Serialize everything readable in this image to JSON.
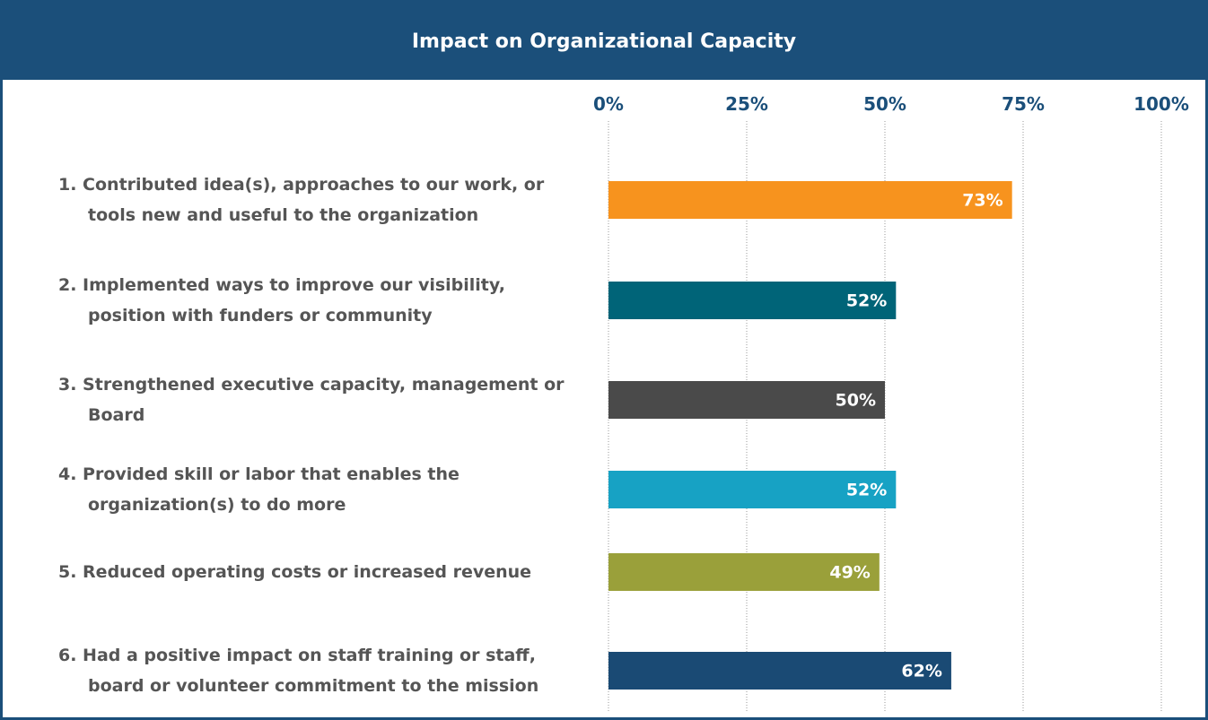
{
  "chart_data": {
    "type": "bar",
    "orientation": "horizontal",
    "title": "Impact on Organizational Capacity",
    "categories": [
      "1. Contributed idea(s), approaches to our work, or tools new and useful to the organization",
      "2. Implemented ways to improve our visibility, position with funders or community",
      "3. Strengthened executive capacity, management or Board",
      "4. Provided skill or labor that enables the organization(s) to do more",
      "5. Reduced operating costs or increased revenue",
      "6. Had a positive impact on staff training or staff, board or volunteer commitment to the mission"
    ],
    "values": [
      73,
      52,
      50,
      52,
      49,
      62
    ],
    "value_labels": [
      "73%",
      "52%",
      "50%",
      "52%",
      "49%",
      "62%"
    ],
    "colors": [
      "#f7931e",
      "#006478",
      "#4a4a4a",
      "#17a2c4",
      "#9aa03a",
      "#1a4a74"
    ],
    "xlim": [
      0,
      100
    ],
    "xticks": [
      {
        "value": 0,
        "label": "0%"
      },
      {
        "value": 25,
        "label": "25%"
      },
      {
        "value": 50,
        "label": "50%"
      },
      {
        "value": 75,
        "label": "75%"
      },
      {
        "value": 100,
        "label": "100%"
      }
    ],
    "grid": true
  }
}
